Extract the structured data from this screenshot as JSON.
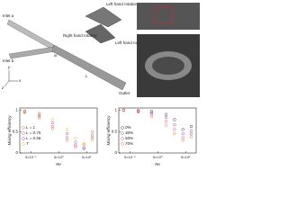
{
  "diagram": {
    "labels": [
      "Inlet a",
      "Inlet b",
      "Left hand rotation",
      "Right hand rotation",
      "Left hand rotation",
      "Outlet",
      "x",
      "y",
      "z",
      "L",
      "w"
    ]
  },
  "chart_data": [
    {
      "type": "scatter",
      "y_label": "Mixing efficiency",
      "x_label": "Re",
      "xscale": "log",
      "legend": "left",
      "x": [
        0.3,
        1,
        3,
        10,
        20,
        40,
        80
      ],
      "xlim": [
        0.2,
        120
      ],
      "xticks": [
        {
          "value": 0.5,
          "label": "5×10⁻¹"
        },
        {
          "value": 5,
          "label": "5×10⁰"
        },
        {
          "value": 50,
          "label": "5×10¹"
        }
      ],
      "ylim": [
        0,
        1.05
      ],
      "yticks": [
        0,
        0.5,
        1
      ],
      "series": [
        {
          "name": "L = 1",
          "color": "#e8833a",
          "values": [
            0.95,
            0.82,
            0.56,
            0.3,
            0.14,
            0.2,
            0.5
          ]
        },
        {
          "name": "L = 0.75",
          "color": "#d9558a",
          "values": [
            0.96,
            0.86,
            0.62,
            0.36,
            0.18,
            0.12,
            0.42
          ]
        },
        {
          "name": "L = 0.56",
          "color": "#8a5fb0",
          "values": [
            0.97,
            0.9,
            0.7,
            0.45,
            0.25,
            0.1,
            0.35
          ]
        },
        {
          "name": "T",
          "color": "#e6c030",
          "values": [
            0.98,
            0.93,
            0.78,
            0.55,
            0.35,
            0.22,
            0.3
          ]
        }
      ]
    },
    {
      "type": "scatter",
      "y_label": "Mixing efficiency",
      "x_label": "Re",
      "xscale": "log",
      "legend": "left",
      "x": [
        0.3,
        1,
        3,
        10,
        20,
        40,
        80
      ],
      "xlim": [
        0.2,
        120
      ],
      "xticks": [
        {
          "value": 0.5,
          "label": "5×10⁻¹"
        },
        {
          "value": 5,
          "label": "5×10⁰"
        },
        {
          "value": 50,
          "label": "5×10¹"
        }
      ],
      "ylim": [
        0,
        1.05
      ],
      "yticks": [
        0,
        0.5,
        1
      ],
      "series": [
        {
          "name": "0%",
          "color": "#444444",
          "values": [
            1,
            0.99,
            0.97,
            0.9,
            0.78,
            0.55,
            0.62
          ]
        },
        {
          "name": "30%",
          "color": "#8a5fb0",
          "values": [
            1,
            0.98,
            0.94,
            0.83,
            0.66,
            0.45,
            0.52
          ]
        },
        {
          "name": "50%",
          "color": "#d9558a",
          "values": [
            1,
            0.97,
            0.9,
            0.74,
            0.55,
            0.36,
            0.45
          ]
        },
        {
          "name": "70%",
          "color": "#e8833a",
          "values": [
            0.99,
            0.95,
            0.85,
            0.65,
            0.45,
            0.3,
            0.38
          ]
        }
      ]
    }
  ]
}
